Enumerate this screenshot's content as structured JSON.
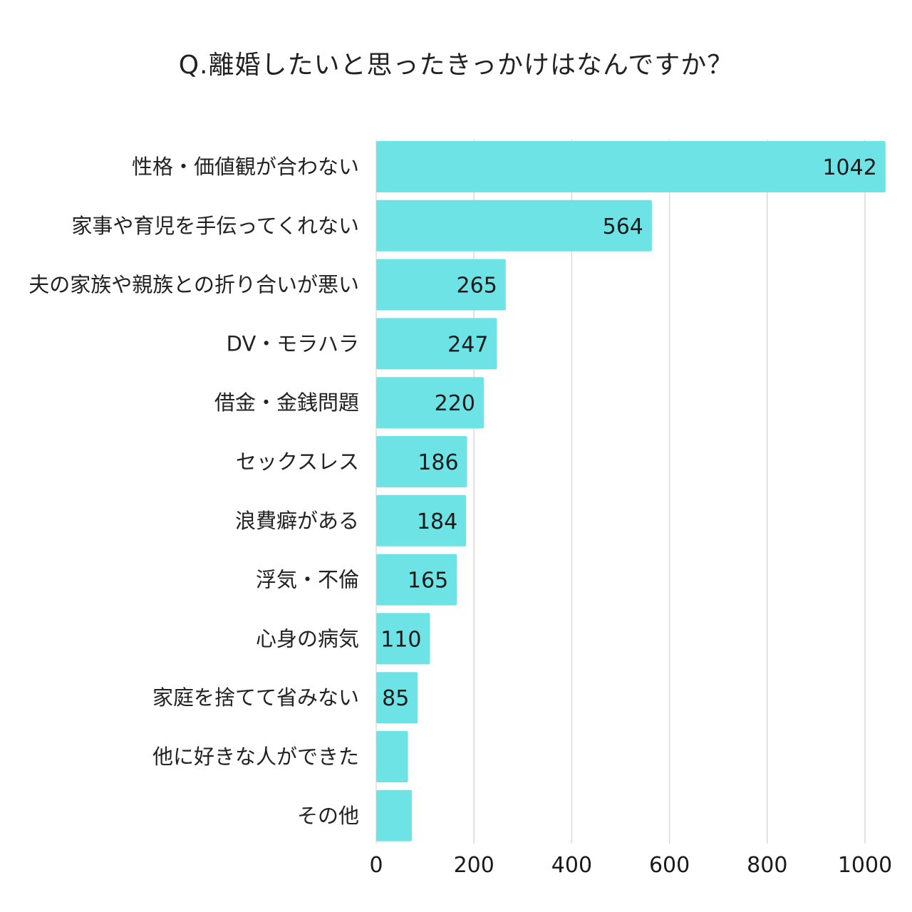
{
  "chart_data": {
    "type": "bar",
    "orientation": "horizontal",
    "title": "Q.離婚したいと思ったきっかけはなんですか？",
    "categories": [
      "性格・価値観が合わない",
      "家事や育児を手伝ってくれない",
      "夫の家族や親族との折り合いが悪い",
      "DV・モラハラ",
      "借金・金銭問題",
      "セックスレス",
      "浪費癖がある",
      "浮気・不倫",
      "心身の病気",
      "家庭を捨てて省みない",
      "他に好きな人ができた",
      "その他"
    ],
    "values": [
      1042,
      564,
      265,
      247,
      220,
      186,
      184,
      165,
      110,
      85,
      65,
      73
    ],
    "value_labels": [
      "1042",
      "564",
      "265",
      "247",
      "220",
      "186",
      "184",
      "165",
      "110",
      "85",
      "",
      ""
    ],
    "xlim": [
      0,
      1000
    ],
    "xticks": [
      "0",
      "200",
      "400",
      "600",
      "800",
      "1000"
    ],
    "xtick_values": [
      0,
      200,
      400,
      600,
      800,
      1000
    ],
    "grid": "vertical",
    "bar_color": "#6ee3e6",
    "grid_color": "#d9d9d9"
  }
}
